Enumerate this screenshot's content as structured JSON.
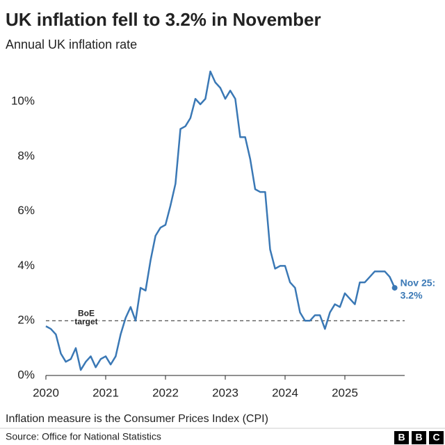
{
  "chart_data": {
    "type": "line",
    "title": "UK inflation fell to 3.2% in November",
    "subtitle": "Annual UK inflation rate",
    "x": [
      2020,
      2020.083,
      2020.167,
      2020.25,
      2020.333,
      2020.417,
      2020.5,
      2020.583,
      2020.667,
      2020.75,
      2020.833,
      2020.917,
      2021,
      2021.083,
      2021.167,
      2021.25,
      2021.333,
      2021.417,
      2021.5,
      2021.583,
      2021.667,
      2021.75,
      2021.833,
      2021.917,
      2022,
      2022.083,
      2022.167,
      2022.25,
      2022.333,
      2022.417,
      2022.5,
      2022.583,
      2022.667,
      2022.75,
      2022.833,
      2022.917,
      2023,
      2023.083,
      2023.167,
      2023.25,
      2023.333,
      2023.417,
      2023.5,
      2023.583,
      2023.667,
      2023.75,
      2023.833,
      2023.917,
      2024,
      2024.083,
      2024.167,
      2024.25,
      2024.333,
      2024.417,
      2024.5,
      2024.583,
      2024.667,
      2024.75,
      2024.833,
      2024.917,
      2025,
      2025.083,
      2025.167,
      2025.25,
      2025.333,
      2025.417,
      2025.5,
      2025.583,
      2025.667,
      2025.75,
      2025.833
    ],
    "series": [
      {
        "name": "Annual UK inflation rate",
        "color": "#3a78b5",
        "values": [
          1.8,
          1.7,
          1.5,
          0.8,
          0.5,
          0.6,
          1.0,
          0.2,
          0.5,
          0.7,
          0.3,
          0.6,
          0.7,
          0.4,
          0.7,
          1.5,
          2.1,
          2.5,
          2.0,
          3.2,
          3.1,
          4.2,
          5.1,
          5.4,
          5.5,
          6.2,
          7.0,
          9.0,
          9.1,
          9.4,
          10.1,
          9.9,
          10.1,
          11.1,
          10.7,
          10.5,
          10.1,
          10.4,
          10.1,
          8.7,
          8.7,
          7.9,
          6.8,
          6.7,
          6.7,
          4.6,
          3.9,
          4.0,
          4.0,
          3.4,
          3.2,
          2.3,
          2.0,
          2.0,
          2.2,
          2.2,
          1.7,
          2.3,
          2.6,
          2.5,
          3.0,
          2.8,
          2.6,
          3.4,
          3.4,
          3.6,
          3.8,
          3.8,
          3.8,
          3.6,
          3.2
        ]
      }
    ],
    "xlim": [
      2020,
      2026
    ],
    "xticks": [
      2020,
      2021,
      2022,
      2023,
      2024,
      2025
    ],
    "ylim": [
      0,
      11.5
    ],
    "yticks": [
      {
        "value": 0,
        "label": "0%"
      },
      {
        "value": 2,
        "label": "2%"
      },
      {
        "value": 4,
        "label": "4%"
      },
      {
        "value": 6,
        "label": "6%"
      },
      {
        "value": 8,
        "label": "8%"
      },
      {
        "value": 10,
        "label": "10%"
      }
    ],
    "target_line": 2,
    "target_label": [
      "BoE",
      "target"
    ],
    "end_label": [
      "Nov 25:",
      "3.2%"
    ],
    "note": "Inflation measure is the Consumer Prices Index (CPI)",
    "source": "Source: Office for National Statistics",
    "logo": [
      "B",
      "B",
      "C"
    ]
  }
}
